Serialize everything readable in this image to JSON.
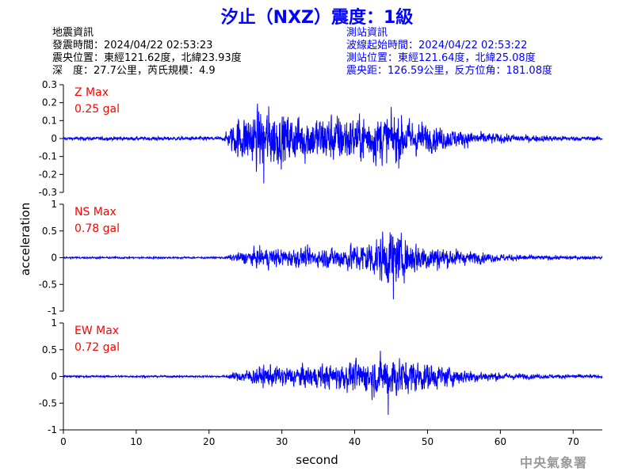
{
  "title": "汐止（NXZ）震度：1級",
  "quake_info": {
    "heading": "地震資訊",
    "time": "發震時間：2024/04/22 02:53:23",
    "epicenter": "震央位置：東經121.62度，北緯23.93度",
    "depth_magnitude": "深　度：27.7公里，芮氏規模：4.9"
  },
  "station_info": {
    "heading": "測站資訊",
    "wave_start": "波線起始時間：2024/04/22 02:53:22",
    "location": "測站位置：東經121.64度，北緯25.08度",
    "distance": "震央距：126.59公里，反方位角：181.08度"
  },
  "watermark": "中央氣象署",
  "colors": {
    "title": "#0000ff",
    "trace": "#0000ff",
    "max_label": "#ff0000",
    "axis": "#000000",
    "watermark": "#999999"
  },
  "chart_data": [
    {
      "type": "line",
      "component": "Z",
      "max_label": "Z Max",
      "max_value": "0.25 gal",
      "ylim": [
        -0.3,
        0.3
      ],
      "yticks": [
        "0.3",
        "0.2",
        "0.1",
        "0",
        "-0.1",
        "-0.2",
        "-0.3"
      ],
      "envelope": {
        "t": [
          0,
          5,
          10,
          15,
          20,
          22,
          22.5,
          24,
          26,
          28,
          30,
          32,
          35,
          38,
          40,
          44,
          46,
          48,
          50,
          55,
          60,
          65,
          70,
          74
        ],
        "amp": [
          0.01,
          0.012,
          0.012,
          0.012,
          0.012,
          0.012,
          0.05,
          0.14,
          0.18,
          0.2,
          0.16,
          0.15,
          0.15,
          0.16,
          0.14,
          0.16,
          0.15,
          0.12,
          0.09,
          0.05,
          0.03,
          0.02,
          0.015,
          0.012
        ]
      },
      "peak": {
        "t": 27.5,
        "value": -0.25
      }
    },
    {
      "type": "line",
      "component": "NS",
      "max_label": "NS Max",
      "max_value": "0.78 gal",
      "ylim": [
        -1,
        1
      ],
      "yticks": [
        "1",
        "0.5",
        "0",
        "-0.5",
        "-1"
      ],
      "envelope": {
        "t": [
          0,
          10,
          20,
          22,
          23,
          25,
          28,
          30,
          35,
          40,
          43,
          44,
          45,
          47,
          50,
          55,
          60,
          65,
          70,
          74
        ],
        "amp": [
          0.02,
          0.02,
          0.02,
          0.02,
          0.06,
          0.15,
          0.22,
          0.2,
          0.2,
          0.3,
          0.45,
          0.55,
          0.6,
          0.4,
          0.3,
          0.15,
          0.08,
          0.05,
          0.04,
          0.03
        ]
      },
      "peak": {
        "t": 45.3,
        "value": -0.78
      }
    },
    {
      "type": "line",
      "component": "EW",
      "max_label": "EW Max",
      "max_value": "0.72 gal",
      "ylim": [
        -1,
        1
      ],
      "yticks": [
        "1",
        "0.5",
        "0",
        "-0.5",
        "-1"
      ],
      "envelope": {
        "t": [
          0,
          10,
          20,
          22,
          23,
          25,
          28,
          30,
          35,
          40,
          43,
          45,
          47,
          50,
          55,
          60,
          65,
          70,
          74
        ],
        "amp": [
          0.02,
          0.02,
          0.02,
          0.02,
          0.06,
          0.15,
          0.24,
          0.22,
          0.25,
          0.32,
          0.4,
          0.48,
          0.38,
          0.3,
          0.15,
          0.08,
          0.05,
          0.04,
          0.03
        ]
      },
      "peak": {
        "t": 44.6,
        "value": -0.72
      }
    }
  ],
  "x_axis": {
    "label": "second",
    "xlim": [
      0,
      74
    ],
    "ticks": [
      0,
      10,
      20,
      30,
      40,
      50,
      60,
      70
    ]
  },
  "y_axis": {
    "label": "acceleration"
  }
}
